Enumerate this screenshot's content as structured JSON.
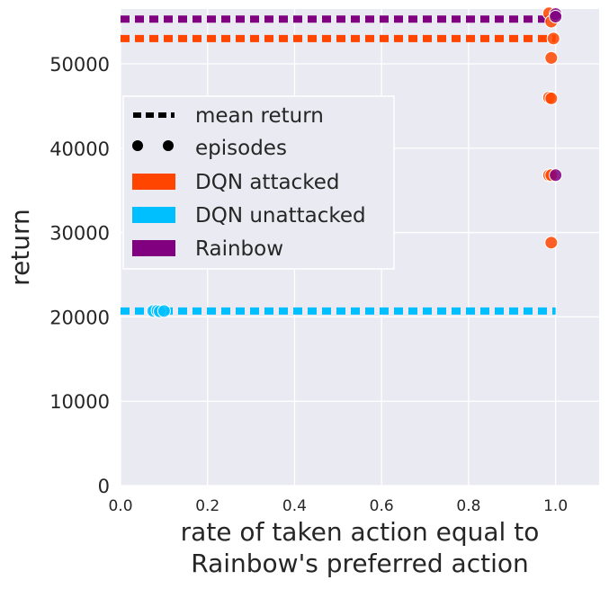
{
  "chart_data": {
    "type": "scatter",
    "xlabel_lines": [
      "rate of taken action equal to",
      "Rainbow's preferred action"
    ],
    "ylabel": "return",
    "xlim": [
      0,
      1.1
    ],
    "ylim": [
      0,
      56500
    ],
    "x_ticks": [
      "0.0",
      "0.2",
      "0.4",
      "0.6",
      "0.8",
      "1.0"
    ],
    "x_tick_values": [
      0,
      0.2,
      0.4,
      0.6,
      0.8,
      1.0
    ],
    "y_ticks": [
      "0",
      "10000",
      "20000",
      "30000",
      "40000",
      "50000"
    ],
    "y_tick_values": [
      0,
      10000,
      20000,
      30000,
      40000,
      50000
    ],
    "grid": true,
    "legend_position": "upper-left",
    "legend": [
      {
        "label": "mean return",
        "kind": "dashed-line"
      },
      {
        "label": "episodes",
        "kind": "markers"
      },
      {
        "label": "DQN attacked",
        "kind": "patch",
        "color": "#ff4500"
      },
      {
        "label": "DQN unattacked",
        "kind": "patch",
        "color": "#00bfff"
      },
      {
        "label": "Rainbow",
        "kind": "patch",
        "color": "#800080"
      }
    ],
    "series": [
      {
        "name": "DQN attacked",
        "color": "#ff4500",
        "mean_return": 53000,
        "mean_line_x": [
          0,
          1.0
        ],
        "points": [
          {
            "x": 0.985,
            "y": 56000
          },
          {
            "x": 0.99,
            "y": 55000
          },
          {
            "x": 0.995,
            "y": 53000
          },
          {
            "x": 0.99,
            "y": 50700
          },
          {
            "x": 0.985,
            "y": 46000
          },
          {
            "x": 0.99,
            "y": 45900
          },
          {
            "x": 0.985,
            "y": 36800
          },
          {
            "x": 0.99,
            "y": 36800
          },
          {
            "x": 0.99,
            "y": 28800
          }
        ]
      },
      {
        "name": "DQN unattacked",
        "color": "#00bfff",
        "mean_return": 20700,
        "mean_line_x": [
          0,
          1.0
        ],
        "points": [
          {
            "x": 0.075,
            "y": 20700
          },
          {
            "x": 0.085,
            "y": 20750
          },
          {
            "x": 0.09,
            "y": 20650
          },
          {
            "x": 0.1,
            "y": 20700
          }
        ]
      },
      {
        "name": "Rainbow",
        "color": "#800080",
        "mean_return": 55300,
        "mean_line_x": [
          0,
          1.0
        ],
        "points": [
          {
            "x": 1.0,
            "y": 55900
          },
          {
            "x": 1.0,
            "y": 55600
          },
          {
            "x": 1.0,
            "y": 36800
          }
        ]
      }
    ]
  }
}
